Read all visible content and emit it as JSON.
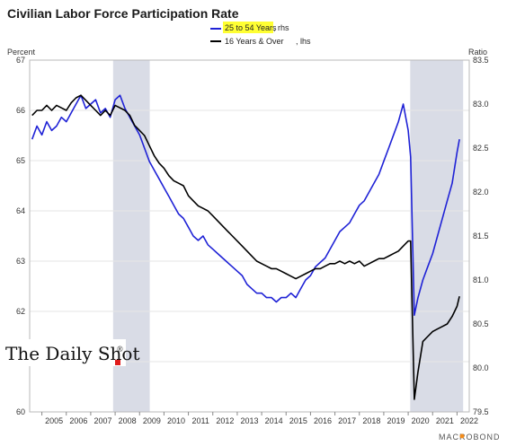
{
  "chart_data": {
    "type": "line",
    "title": "Civilian Labor Force Participation Rate",
    "left_axis_unit": "Percent",
    "right_axis_unit": "Ratio",
    "left_ylim": [
      60,
      67
    ],
    "right_ylim": [
      79.5,
      83.5
    ],
    "left_ticks": [
      "60",
      "61",
      "62",
      "63",
      "64",
      "65",
      "66",
      "67"
    ],
    "right_ticks": [
      "79.5",
      "80.0",
      "80.5",
      "81.0",
      "81.5",
      "82.0",
      "82.5",
      "83.0",
      "83.5"
    ],
    "xlim": [
      2004.5,
      2022.5
    ],
    "x_ticks": [
      "2005",
      "2006",
      "2007",
      "2008",
      "2009",
      "2010",
      "2011",
      "2012",
      "2013",
      "2014",
      "2015",
      "2016",
      "2017",
      "2018",
      "2019",
      "2020",
      "2021",
      "2022"
    ],
    "grid": true,
    "legend_position": "top-center",
    "recessions": [
      [
        2007.917,
        2009.417
      ],
      [
        2020.083,
        2022.25
      ]
    ],
    "series": [
      {
        "name": "25 to 54 Years",
        "name_suffix": ", rhs",
        "axis": "right",
        "color": "#1f22d6",
        "highlight": "#ffff33",
        "x": [
          2004.6,
          2004.8,
          2005.0,
          2005.2,
          2005.4,
          2005.6,
          2005.8,
          2006.0,
          2006.2,
          2006.4,
          2006.6,
          2006.8,
          2007.0,
          2007.2,
          2007.4,
          2007.6,
          2007.8,
          2008.0,
          2008.2,
          2008.4,
          2008.6,
          2008.8,
          2009.0,
          2009.2,
          2009.4,
          2009.6,
          2009.8,
          2010.0,
          2010.2,
          2010.4,
          2010.6,
          2010.8,
          2011.0,
          2011.2,
          2011.4,
          2011.6,
          2011.8,
          2012.0,
          2012.2,
          2012.4,
          2012.6,
          2012.8,
          2013.0,
          2013.2,
          2013.4,
          2013.6,
          2013.8,
          2014.0,
          2014.2,
          2014.4,
          2014.6,
          2014.8,
          2015.0,
          2015.2,
          2015.4,
          2015.6,
          2015.8,
          2016.0,
          2016.2,
          2016.4,
          2016.6,
          2016.8,
          2017.0,
          2017.2,
          2017.4,
          2017.6,
          2017.8,
          2018.0,
          2018.2,
          2018.4,
          2018.6,
          2018.8,
          2019.0,
          2019.2,
          2019.4,
          2019.6,
          2019.8,
          2020.0,
          2020.1,
          2020.25,
          2020.4,
          2020.6,
          2020.8,
          2021.0,
          2021.2,
          2021.4,
          2021.6,
          2021.8,
          2022.0,
          2022.1
        ],
        "y": [
          82.6,
          82.75,
          82.65,
          82.8,
          82.7,
          82.75,
          82.85,
          82.8,
          82.9,
          83.0,
          83.1,
          82.95,
          83.0,
          83.05,
          82.9,
          82.95,
          82.85,
          83.05,
          83.1,
          82.95,
          82.85,
          82.75,
          82.65,
          82.5,
          82.35,
          82.25,
          82.15,
          82.05,
          81.95,
          81.85,
          81.75,
          81.7,
          81.6,
          81.5,
          81.45,
          81.5,
          81.4,
          81.35,
          81.3,
          81.25,
          81.2,
          81.15,
          81.1,
          81.05,
          80.95,
          80.9,
          80.85,
          80.85,
          80.8,
          80.8,
          80.75,
          80.8,
          80.8,
          80.85,
          80.8,
          80.9,
          81.0,
          81.05,
          81.15,
          81.2,
          81.25,
          81.35,
          81.45,
          81.55,
          81.6,
          81.65,
          81.75,
          81.85,
          81.9,
          82.0,
          82.1,
          82.2,
          82.35,
          82.5,
          82.65,
          82.8,
          83.0,
          82.7,
          82.4,
          80.6,
          80.8,
          81.0,
          81.15,
          81.3,
          81.5,
          81.7,
          81.9,
          82.1,
          82.45,
          82.6
        ]
      },
      {
        "name": "16 Years & Over",
        "name_suffix": ", lhs",
        "axis": "left",
        "color": "#000000",
        "x": [
          2004.6,
          2004.8,
          2005.0,
          2005.2,
          2005.4,
          2005.6,
          2005.8,
          2006.0,
          2006.2,
          2006.4,
          2006.6,
          2006.8,
          2007.0,
          2007.2,
          2007.4,
          2007.6,
          2007.8,
          2008.0,
          2008.2,
          2008.4,
          2008.6,
          2008.8,
          2009.0,
          2009.2,
          2009.4,
          2009.6,
          2009.8,
          2010.0,
          2010.2,
          2010.4,
          2010.6,
          2010.8,
          2011.0,
          2011.2,
          2011.4,
          2011.6,
          2011.8,
          2012.0,
          2012.2,
          2012.4,
          2012.6,
          2012.8,
          2013.0,
          2013.2,
          2013.4,
          2013.6,
          2013.8,
          2014.0,
          2014.2,
          2014.4,
          2014.6,
          2014.8,
          2015.0,
          2015.2,
          2015.4,
          2015.6,
          2015.8,
          2016.0,
          2016.2,
          2016.4,
          2016.6,
          2016.8,
          2017.0,
          2017.2,
          2017.4,
          2017.6,
          2017.8,
          2018.0,
          2018.2,
          2018.4,
          2018.6,
          2018.8,
          2019.0,
          2019.2,
          2019.4,
          2019.6,
          2019.8,
          2020.0,
          2020.1,
          2020.25,
          2020.4,
          2020.6,
          2020.8,
          2021.0,
          2021.2,
          2021.4,
          2021.6,
          2021.8,
          2022.0,
          2022.1
        ],
        "y": [
          65.9,
          66.0,
          66.0,
          66.1,
          66.0,
          66.1,
          66.05,
          66.0,
          66.15,
          66.25,
          66.3,
          66.2,
          66.1,
          66.0,
          65.9,
          66.0,
          65.9,
          66.1,
          66.05,
          66.0,
          65.9,
          65.7,
          65.6,
          65.5,
          65.3,
          65.1,
          64.95,
          64.85,
          64.7,
          64.6,
          64.55,
          64.5,
          64.3,
          64.2,
          64.1,
          64.05,
          64.0,
          63.9,
          63.8,
          63.7,
          63.6,
          63.5,
          63.4,
          63.3,
          63.2,
          63.1,
          63.0,
          62.95,
          62.9,
          62.85,
          62.85,
          62.8,
          62.75,
          62.7,
          62.65,
          62.7,
          62.75,
          62.8,
          62.85,
          62.85,
          62.9,
          62.95,
          62.95,
          63.0,
          62.95,
          63.0,
          62.95,
          63.0,
          62.9,
          62.95,
          63.0,
          63.05,
          63.05,
          63.1,
          63.15,
          63.2,
          63.3,
          63.4,
          63.4,
          60.25,
          60.8,
          61.4,
          61.5,
          61.6,
          61.65,
          61.7,
          61.75,
          61.9,
          62.1,
          62.3
        ]
      }
    ]
  },
  "brand": {
    "name": "The Daily Shot",
    "mark": "®"
  },
  "source_label": "MACROBOND"
}
